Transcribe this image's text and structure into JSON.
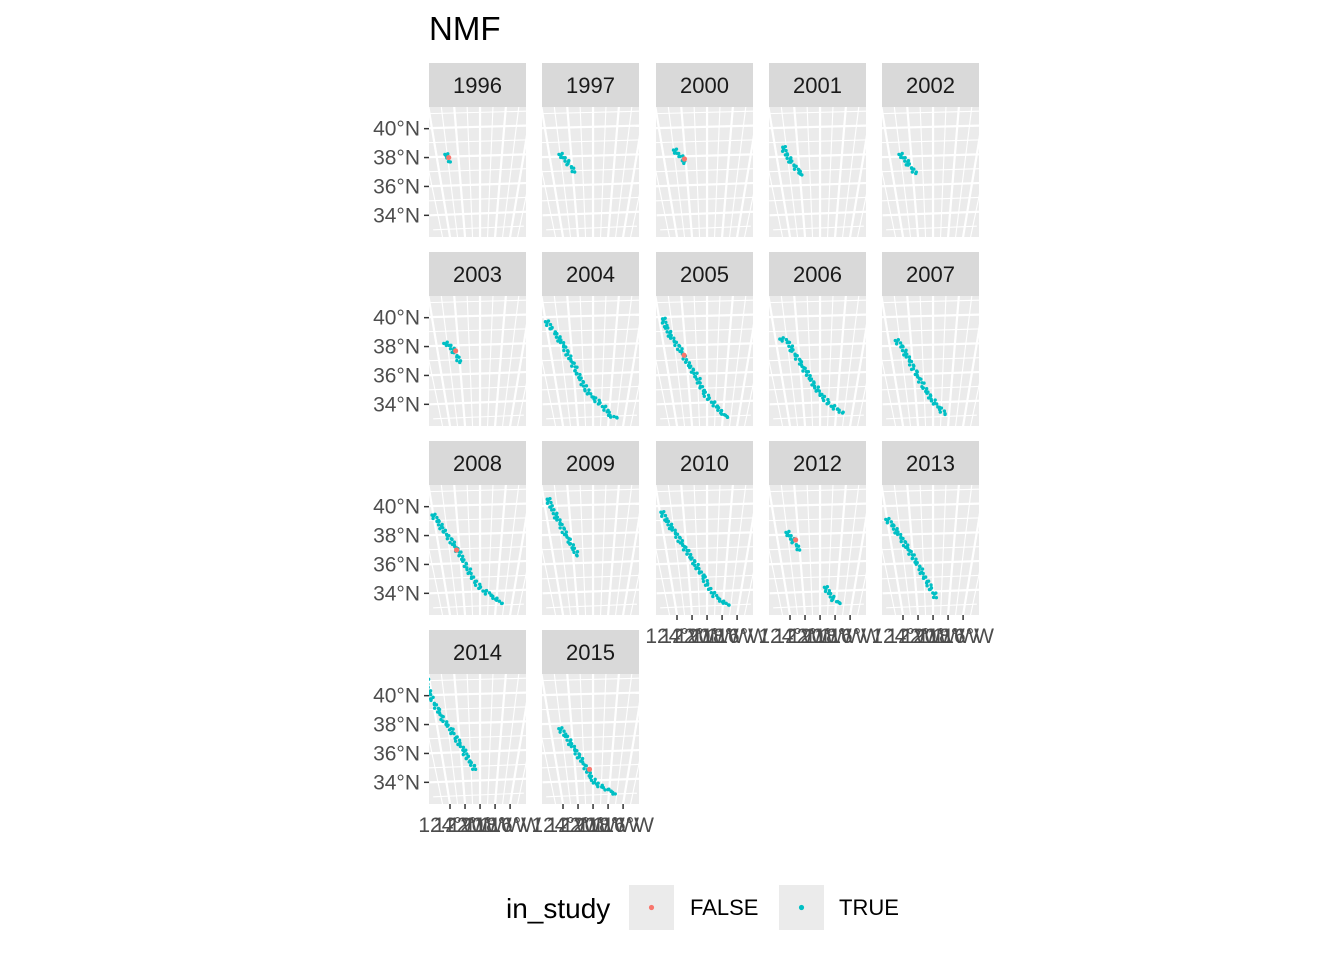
{
  "chart_data": {
    "type": "scatter",
    "title": "NMF",
    "facet_by": "year",
    "legend": {
      "title": "in_study",
      "position": "bottom",
      "entries": [
        {
          "label": "FALSE",
          "color": "#F8766D"
        },
        {
          "label": "TRUE",
          "color": "#00BFC4"
        }
      ]
    },
    "y_axis": {
      "ticks": [
        40,
        38,
        36,
        34
      ],
      "tick_labels": [
        "40°N",
        "38°N",
        "36°N",
        "34°N"
      ],
      "range": [
        32.5,
        41.5
      ]
    },
    "x_axis": {
      "ticks": [
        -124,
        -122,
        -120,
        -118,
        -116
      ],
      "tick_labels": [
        "124°W",
        "122°W",
        "120°W",
        "118°W",
        "116°W"
      ],
      "range": [
        -125,
        -115.5
      ]
    },
    "grid": true,
    "panels": [
      {
        "year": "1996",
        "tracks": [
          {
            "in_study": "TRUE",
            "points": [
              [
                -123.2,
                38.3
              ],
              [
                -123.0,
                38.0
              ],
              [
                -122.8,
                37.7
              ]
            ]
          },
          {
            "in_study": "FALSE",
            "points": [
              [
                -122.9,
                38.0
              ]
            ]
          }
        ]
      },
      {
        "year": "1997",
        "tracks": [
          {
            "in_study": "TRUE",
            "points": [
              [
                -123.1,
                38.3
              ],
              [
                -122.7,
                38.0
              ],
              [
                -122.2,
                37.5
              ],
              [
                -121.8,
                37.0
              ]
            ]
          }
        ]
      },
      {
        "year": "2000",
        "tracks": [
          {
            "in_study": "TRUE",
            "points": [
              [
                -123.0,
                38.6
              ],
              [
                -122.7,
                38.3
              ],
              [
                -122.3,
                38.0
              ],
              [
                -122.2,
                37.6
              ]
            ]
          },
          {
            "in_study": "FALSE",
            "points": [
              [
                -122.1,
                37.9
              ]
            ]
          }
        ]
      },
      {
        "year": "2001",
        "tracks": [
          {
            "in_study": "TRUE",
            "points": [
              [
                -123.3,
                38.8
              ],
              [
                -123.1,
                38.2
              ],
              [
                -122.6,
                37.6
              ],
              [
                -122.1,
                37.0
              ],
              [
                -121.8,
                36.8
              ]
            ]
          }
        ]
      },
      {
        "year": "2002",
        "tracks": [
          {
            "in_study": "TRUE",
            "points": [
              [
                -123.1,
                38.3
              ],
              [
                -122.7,
                38.0
              ],
              [
                -122.2,
                37.4
              ],
              [
                -121.7,
                36.9
              ]
            ]
          }
        ]
      },
      {
        "year": "2003",
        "tracks": [
          {
            "in_study": "TRUE",
            "points": [
              [
                -123.3,
                38.3
              ],
              [
                -122.8,
                38.1
              ],
              [
                -122.3,
                37.5
              ],
              [
                -122.0,
                36.9
              ]
            ]
          },
          {
            "in_study": "FALSE",
            "points": [
              [
                -122.3,
                37.7
              ]
            ]
          }
        ]
      },
      {
        "year": "2004",
        "tracks": [
          {
            "in_study": "TRUE",
            "points": [
              [
                -124.0,
                39.8
              ],
              [
                -123.3,
                38.9
              ],
              [
                -122.8,
                38.2
              ],
              [
                -122.3,
                37.3
              ],
              [
                -121.6,
                36.2
              ],
              [
                -120.8,
                35.0
              ],
              [
                -119.9,
                34.4
              ],
              [
                -119.0,
                34.0
              ],
              [
                -118.3,
                33.6
              ],
              [
                -117.8,
                33.2
              ],
              [
                -117.0,
                33.1
              ]
            ]
          }
        ]
      },
      {
        "year": "2005",
        "tracks": [
          {
            "in_study": "TRUE",
            "points": [
              [
                -123.7,
                40.0
              ],
              [
                -123.5,
                39.3
              ],
              [
                -123.1,
                38.5
              ],
              [
                -122.5,
                37.8
              ],
              [
                -122.0,
                37.0
              ],
              [
                -121.0,
                35.8
              ],
              [
                -120.4,
                34.8
              ],
              [
                -119.6,
                34.3
              ],
              [
                -118.9,
                33.9
              ],
              [
                -118.2,
                33.4
              ],
              [
                -117.4,
                33.1
              ]
            ]
          },
          {
            "in_study": "FALSE",
            "points": [
              [
                -122.2,
                37.4
              ]
            ]
          }
        ]
      },
      {
        "year": "2006",
        "tracks": [
          {
            "in_study": "TRUE",
            "points": [
              [
                -123.6,
                38.6
              ],
              [
                -122.9,
                38.3
              ],
              [
                -122.5,
                37.6
              ],
              [
                -122.0,
                36.9
              ],
              [
                -121.3,
                36.1
              ],
              [
                -120.5,
                35.2
              ],
              [
                -119.7,
                34.5
              ],
              [
                -118.8,
                34.0
              ],
              [
                -118.0,
                33.7
              ],
              [
                -117.2,
                33.4
              ]
            ]
          }
        ]
      },
      {
        "year": "2007",
        "tracks": [
          {
            "in_study": "TRUE",
            "points": [
              [
                -123.4,
                38.5
              ],
              [
                -122.9,
                38.0
              ],
              [
                -122.4,
                37.2
              ],
              [
                -121.8,
                36.2
              ],
              [
                -121.0,
                35.2
              ],
              [
                -120.1,
                34.3
              ],
              [
                -119.2,
                33.7
              ],
              [
                -118.5,
                33.3
              ]
            ]
          }
        ]
      },
      {
        "year": "2008",
        "tracks": [
          {
            "in_study": "TRUE",
            "points": [
              [
                -124.1,
                39.5
              ],
              [
                -123.7,
                39.0
              ],
              [
                -123.2,
                38.2
              ],
              [
                -122.6,
                37.5
              ],
              [
                -122.0,
                36.7
              ],
              [
                -121.3,
                35.7
              ],
              [
                -120.6,
                34.8
              ],
              [
                -119.8,
                34.3
              ],
              [
                -118.8,
                33.9
              ],
              [
                -118.0,
                33.6
              ],
              [
                -117.3,
                33.3
              ]
            ]
          },
          {
            "in_study": "FALSE",
            "points": [
              [
                -122.3,
                37.0
              ]
            ]
          }
        ]
      },
      {
        "year": "2009",
        "tracks": [
          {
            "in_study": "TRUE",
            "points": [
              [
                -123.7,
                40.6
              ],
              [
                -123.4,
                39.8
              ],
              [
                -123.0,
                39.0
              ],
              [
                -122.6,
                38.2
              ],
              [
                -122.1,
                37.5
              ],
              [
                -121.8,
                36.9
              ],
              [
                -121.6,
                36.6
              ]
            ]
          }
        ]
      },
      {
        "year": "2010",
        "tracks": [
          {
            "in_study": "TRUE",
            "points": [
              [
                -123.9,
                39.7
              ],
              [
                -123.5,
                39.0
              ],
              [
                -123.0,
                38.3
              ],
              [
                -122.5,
                37.6
              ],
              [
                -121.9,
                36.8
              ],
              [
                -121.2,
                36.0
              ],
              [
                -120.4,
                35.1
              ],
              [
                -119.6,
                34.2
              ],
              [
                -118.8,
                33.7
              ],
              [
                -118.0,
                33.4
              ],
              [
                -117.3,
                33.2
              ]
            ]
          }
        ]
      },
      {
        "year": "2012",
        "tracks": [
          {
            "in_study": "TRUE",
            "points": [
              [
                -123.1,
                38.3
              ],
              [
                -122.8,
                38.0
              ],
              [
                -122.4,
                37.5
              ],
              [
                -122.0,
                37.0
              ]
            ]
          },
          {
            "in_study": "TRUE",
            "points": [
              [
                -119.5,
                34.5
              ],
              [
                -118.9,
                34.0
              ],
              [
                -118.2,
                33.5
              ],
              [
                -117.5,
                33.3
              ]
            ]
          },
          {
            "in_study": "FALSE",
            "points": [
              [
                -122.3,
                37.7
              ]
            ]
          }
        ]
      },
      {
        "year": "2013",
        "tracks": [
          {
            "in_study": "TRUE",
            "points": [
              [
                -124.1,
                39.2
              ],
              [
                -123.6,
                38.7
              ],
              [
                -123.1,
                38.0
              ],
              [
                -122.6,
                37.3
              ],
              [
                -122.0,
                36.5
              ],
              [
                -121.4,
                35.7
              ],
              [
                -120.7,
                34.8
              ],
              [
                -120.1,
                34.2
              ],
              [
                -119.6,
                33.7
              ]
            ]
          }
        ]
      },
      {
        "year": "2014",
        "tracks": [
          {
            "in_study": "TRUE",
            "points": [
              [
                -124.2,
                41.2
              ],
              [
                -124.3,
                40.6
              ],
              [
                -124.0,
                39.6
              ],
              [
                -123.7,
                39.0
              ],
              [
                -123.3,
                38.3
              ],
              [
                -122.8,
                37.7
              ],
              [
                -122.4,
                37.1
              ],
              [
                -121.8,
                36.4
              ],
              [
                -121.2,
                35.5
              ],
              [
                -120.5,
                34.9
              ]
            ]
          }
        ]
      },
      {
        "year": "2015",
        "tracks": [
          {
            "in_study": "TRUE",
            "points": [
              [
                -123.2,
                37.8
              ],
              [
                -122.6,
                37.2
              ],
              [
                -122.0,
                36.4
              ],
              [
                -121.3,
                35.6
              ],
              [
                -120.6,
                34.8
              ],
              [
                -120.1,
                34.2
              ],
              [
                -119.6,
                33.9
              ],
              [
                -118.7,
                33.6
              ],
              [
                -117.9,
                33.4
              ],
              [
                -117.2,
                33.2
              ]
            ]
          },
          {
            "in_study": "FALSE",
            "points": [
              [
                -120.4,
                34.9
              ]
            ]
          }
        ]
      }
    ]
  }
}
